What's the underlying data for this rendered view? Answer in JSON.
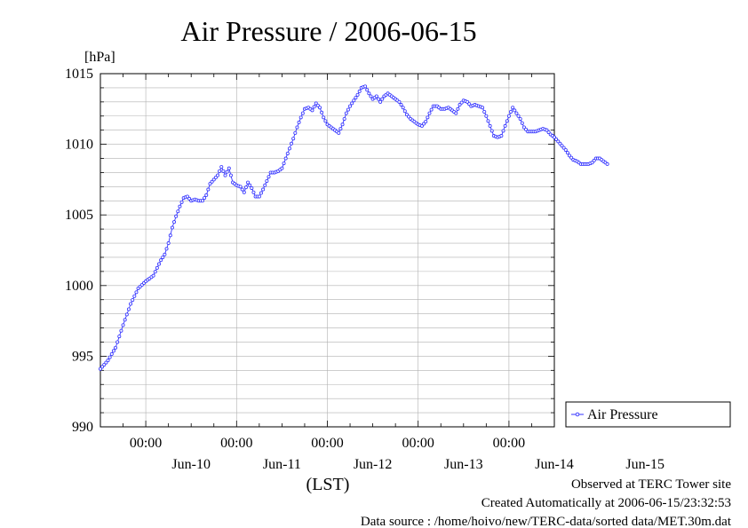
{
  "chart_data": {
    "type": "line",
    "title": "Air Pressure / 2006-06-15",
    "ylabel": "[hPa]",
    "xlabel": "(LST)",
    "ylim": [
      990,
      1015
    ],
    "y_ticks": [
      "990",
      "995",
      "1000",
      "1005",
      "1010",
      "1015"
    ],
    "x_range_hours": [
      -108,
      12
    ],
    "x_time_labels": [
      {
        "hour": -96,
        "label": "00:00"
      },
      {
        "hour": -72,
        "label": "00:00"
      },
      {
        "hour": -48,
        "label": "00:00"
      },
      {
        "hour": -24,
        "label": "00:00"
      },
      {
        "hour": 0,
        "label": "00:00"
      }
    ],
    "x_day_labels": [
      {
        "hour": -96,
        "label": "Jun-10"
      },
      {
        "hour": -72,
        "label": "Jun-11"
      },
      {
        "hour": -48,
        "label": "Jun-12"
      },
      {
        "hour": -24,
        "label": "Jun-13"
      },
      {
        "hour": 0,
        "label": "Jun-14"
      },
      {
        "hour": 24,
        "label": "Jun-15"
      }
    ],
    "grid": true,
    "legend": "right",
    "series": [
      {
        "name": "Air Pressure",
        "color": "#3333ff",
        "points": [
          [
            -108,
            994.1
          ],
          [
            -106,
            994.7
          ],
          [
            -104,
            995.6
          ],
          [
            -102,
            997.2
          ],
          [
            -100,
            998.7
          ],
          [
            -98,
            999.8
          ],
          [
            -96,
            1000.3
          ],
          [
            -94,
            1000.7
          ],
          [
            -92,
            1001.8
          ],
          [
            -91,
            1002.2
          ],
          [
            -90,
            1003.0
          ],
          [
            -89,
            1004.1
          ],
          [
            -88,
            1004.9
          ],
          [
            -87,
            1005.6
          ],
          [
            -86,
            1006.2
          ],
          [
            -85,
            1006.3
          ],
          [
            -84,
            1006.0
          ],
          [
            -83,
            1006.1
          ],
          [
            -82,
            1006.0
          ],
          [
            -81,
            1006.0
          ],
          [
            -80,
            1006.4
          ],
          [
            -79,
            1007.2
          ],
          [
            -78,
            1007.5
          ],
          [
            -77,
            1007.8
          ],
          [
            -76,
            1008.4
          ],
          [
            -75,
            1007.8
          ],
          [
            -74,
            1008.3
          ],
          [
            -73,
            1007.3
          ],
          [
            -72,
            1007.1
          ],
          [
            -71,
            1007.0
          ],
          [
            -70,
            1006.6
          ],
          [
            -69,
            1007.3
          ],
          [
            -68,
            1006.9
          ],
          [
            -67,
            1006.3
          ],
          [
            -66,
            1006.3
          ],
          [
            -65,
            1006.8
          ],
          [
            -64,
            1007.4
          ],
          [
            -63,
            1008.0
          ],
          [
            -62,
            1008.0
          ],
          [
            -61,
            1008.1
          ],
          [
            -60,
            1008.3
          ],
          [
            -59,
            1009.0
          ],
          [
            -58,
            1009.7
          ],
          [
            -57,
            1010.4
          ],
          [
            -56,
            1011.2
          ],
          [
            -55,
            1011.9
          ],
          [
            -54,
            1012.5
          ],
          [
            -53,
            1012.6
          ],
          [
            -52,
            1012.4
          ],
          [
            -51,
            1012.9
          ],
          [
            -50,
            1012.6
          ],
          [
            -49,
            1011.9
          ],
          [
            -48,
            1011.4
          ],
          [
            -47,
            1011.2
          ],
          [
            -46,
            1011.0
          ],
          [
            -45,
            1010.8
          ],
          [
            -44,
            1011.4
          ],
          [
            -43,
            1012.2
          ],
          [
            -42,
            1012.7
          ],
          [
            -41,
            1013.1
          ],
          [
            -40,
            1013.5
          ],
          [
            -39,
            1014.0
          ],
          [
            -38,
            1014.1
          ],
          [
            -37,
            1013.6
          ],
          [
            -36,
            1013.2
          ],
          [
            -35,
            1013.4
          ],
          [
            -34,
            1013.0
          ],
          [
            -33,
            1013.4
          ],
          [
            -32,
            1013.6
          ],
          [
            -31,
            1013.4
          ],
          [
            -30,
            1013.2
          ],
          [
            -29,
            1013.0
          ],
          [
            -28,
            1012.6
          ],
          [
            -27,
            1012.1
          ],
          [
            -26,
            1011.8
          ],
          [
            -25,
            1011.6
          ],
          [
            -24,
            1011.4
          ],
          [
            -23,
            1011.3
          ],
          [
            -22,
            1011.6
          ],
          [
            -21,
            1012.2
          ],
          [
            -20,
            1012.7
          ],
          [
            -19,
            1012.7
          ],
          [
            -18,
            1012.5
          ],
          [
            -17,
            1012.5
          ],
          [
            -16,
            1012.6
          ],
          [
            -15,
            1012.4
          ],
          [
            -14,
            1012.2
          ],
          [
            -13,
            1012.8
          ],
          [
            -12,
            1013.1
          ],
          [
            -11,
            1013.0
          ],
          [
            -10,
            1012.7
          ],
          [
            -9,
            1012.8
          ],
          [
            -8,
            1012.7
          ],
          [
            -7,
            1012.6
          ],
          [
            -6,
            1012.0
          ],
          [
            -5,
            1011.3
          ],
          [
            -4,
            1010.6
          ],
          [
            -3,
            1010.5
          ],
          [
            -2,
            1010.6
          ],
          [
            -1,
            1011.3
          ],
          [
            0,
            1012.0
          ],
          [
            1,
            1012.6
          ],
          [
            2,
            1012.2
          ],
          [
            3,
            1011.8
          ],
          [
            4,
            1011.2
          ],
          [
            5,
            1010.9
          ],
          [
            6,
            1010.9
          ],
          [
            7,
            1010.9
          ],
          [
            8,
            1011.0
          ],
          [
            9,
            1011.1
          ],
          [
            10,
            1011.0
          ],
          [
            11,
            1010.7
          ],
          [
            12,
            1010.5
          ],
          [
            13,
            1010.2
          ],
          [
            14,
            1009.9
          ],
          [
            15,
            1009.6
          ],
          [
            16,
            1009.2
          ],
          [
            17,
            1008.9
          ],
          [
            18,
            1008.8
          ],
          [
            19,
            1008.6
          ],
          [
            20,
            1008.6
          ],
          [
            21,
            1008.6
          ],
          [
            22,
            1008.7
          ],
          [
            23,
            1009.0
          ],
          [
            24,
            1009.0
          ],
          [
            25,
            1008.8
          ],
          [
            26,
            1008.6
          ]
        ]
      }
    ]
  },
  "footer": {
    "line1": "Observed at TERC Tower site",
    "line2": "Created Automatically at 2006-06-15/23:32:53",
    "line3": "Data source : /home/hoivo/new/TERC-data/sorted  data/MET.30m.dat"
  }
}
